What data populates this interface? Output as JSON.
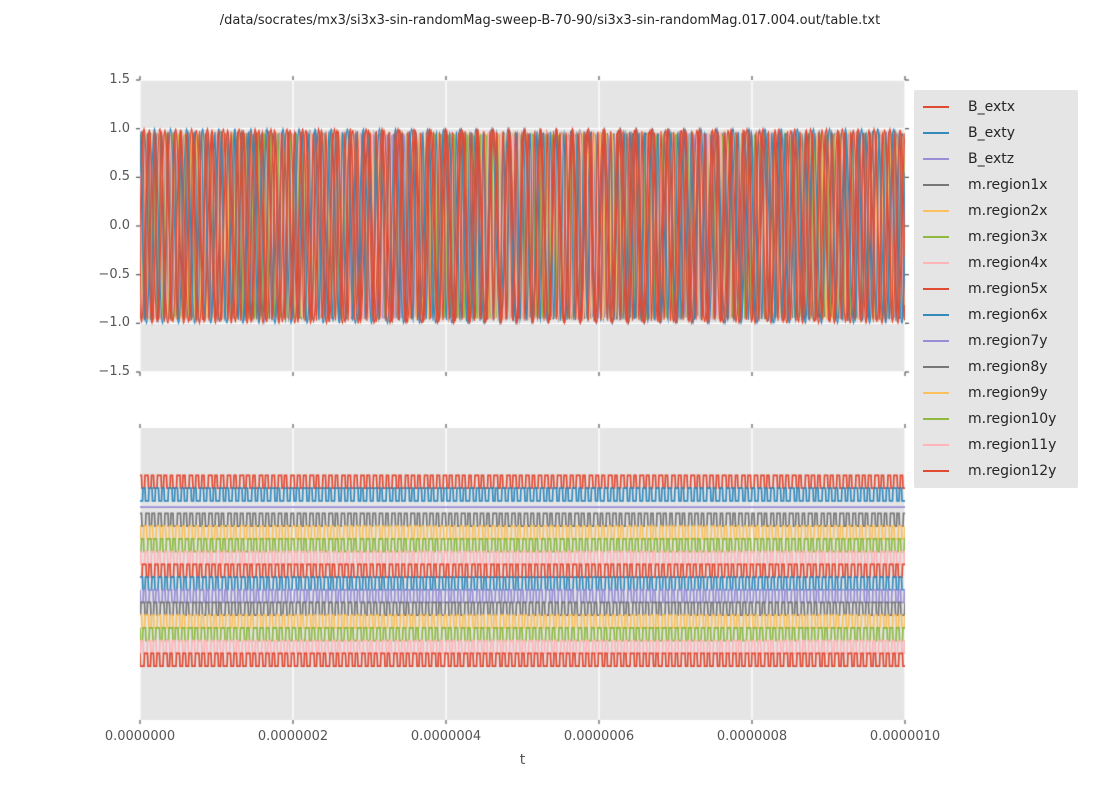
{
  "title": "/data/socrates/mx3/si3x3-sin-randomMag-sweep-B-70-90/si3x3-sin-randomMag.017.004.out/table.txt",
  "xlabel": "t",
  "x_ticks": [
    "0.0000000",
    "0.0000002",
    "0.0000004",
    "0.0000006",
    "0.0000008",
    "0.0000010"
  ],
  "colors": {
    "figure_bg": "#FFFFFF",
    "axes_bg": "#E5E5E5",
    "grid": "#FFFFFF",
    "tick_mark": "#555555",
    "tick_text": "#555555",
    "title_text": "#262626",
    "legend_text": "#262626",
    "palette": {
      "red": "#E24A33",
      "blue": "#348ABD",
      "purple": "#988ED5",
      "gray": "#777777",
      "orange": "#FBC15E",
      "green": "#8EBA42",
      "pink": "#FFB5B8"
    }
  },
  "legend": {
    "position": "right",
    "entries": [
      {
        "label": "B_extx",
        "color": "#E24A33"
      },
      {
        "label": "B_exty",
        "color": "#348ABD"
      },
      {
        "label": "B_extz",
        "color": "#988ED5"
      },
      {
        "label": "m.region1x",
        "color": "#777777"
      },
      {
        "label": "m.region2x",
        "color": "#FBC15E"
      },
      {
        "label": "m.region3x",
        "color": "#8EBA42"
      },
      {
        "label": "m.region4x",
        "color": "#FFB5B8"
      },
      {
        "label": "m.region5x",
        "color": "#E24A33"
      },
      {
        "label": "m.region6x",
        "color": "#348ABD"
      },
      {
        "label": "m.region7y",
        "color": "#988ED5"
      },
      {
        "label": "m.region8y",
        "color": "#777777"
      },
      {
        "label": "m.region9y",
        "color": "#FBC15E"
      },
      {
        "label": "m.region10y",
        "color": "#8EBA42"
      },
      {
        "label": "m.region11y",
        "color": "#FFB5B8"
      },
      {
        "label": "m.region12y",
        "color": "#E24A33"
      }
    ]
  },
  "chart_data": [
    {
      "id": "top",
      "type": "line",
      "title": "",
      "xlabel": "",
      "ylabel": "",
      "xlim": [
        0,
        1e-06
      ],
      "ylim": [
        -1.5,
        1.5
      ],
      "yticks": [
        "1.5",
        "1.0",
        "0.5",
        "0.0",
        "−0.5",
        "−1.0",
        "−1.5"
      ],
      "grid": "both",
      "ytick_marks_both_sides": true,
      "line_width": 1.1,
      "description": "All 15 signals overlaid: sinusoidal oscillations filling the band between -1 and +1 over t = 0 to 1e-6 s; red and blue (B_extx, B_exty) dominate, other colors visible as speckle near the envelope.",
      "series": [
        {
          "name": "B_extx",
          "color": "#E24A33",
          "wave": "sine",
          "amplitude": 1.0,
          "cycles": 48.2,
          "phase": 0.0,
          "z": 12
        },
        {
          "name": "B_exty",
          "color": "#348ABD",
          "wave": "sine",
          "amplitude": 1.0,
          "cycles": 47.6,
          "phase": 2.2,
          "z": 10
        },
        {
          "name": "B_extz",
          "color": "#988ED5",
          "wave": "flat",
          "value": 0.0,
          "z": 0
        },
        {
          "name": "m.region1x",
          "color": "#777777",
          "wave": "sine",
          "amplitude": 0.955,
          "cycles": 118.0,
          "phase": 0.8,
          "z": 1
        },
        {
          "name": "m.region2x",
          "color": "#FBC15E",
          "wave": "sine",
          "amplitude": 0.965,
          "cycles": 123.0,
          "phase": 1.9,
          "z": 2
        },
        {
          "name": "m.region3x",
          "color": "#8EBA42",
          "wave": "sine",
          "amplitude": 0.945,
          "cycles": 116.0,
          "phase": 3.1,
          "z": 3
        },
        {
          "name": "m.region4x",
          "color": "#FFB5B8",
          "wave": "sine",
          "amplitude": 0.96,
          "cycles": 126.0,
          "phase": 4.4,
          "z": 4
        },
        {
          "name": "m.region5x",
          "color": "#E24A33",
          "wave": "sine",
          "amplitude": 0.975,
          "cycles": 121.0,
          "phase": 5.3,
          "z": 13
        },
        {
          "name": "m.region6x",
          "color": "#348ABD",
          "wave": "sine",
          "amplitude": 0.975,
          "cycles": 114.0,
          "phase": 0.6,
          "z": 11
        },
        {
          "name": "m.region7y",
          "color": "#988ED5",
          "wave": "sine",
          "amplitude": 0.95,
          "cycles": 124.0,
          "phase": 2.7,
          "z": 5
        },
        {
          "name": "m.region8y",
          "color": "#777777",
          "wave": "sine",
          "amplitude": 0.96,
          "cycles": 119.0,
          "phase": 3.9,
          "z": 6
        },
        {
          "name": "m.region9y",
          "color": "#FBC15E",
          "wave": "sine",
          "amplitude": 0.955,
          "cycles": 127.0,
          "phase": 5.0,
          "z": 7
        },
        {
          "name": "m.region10y",
          "color": "#8EBA42",
          "wave": "sine",
          "amplitude": 0.95,
          "cycles": 117.0,
          "phase": 1.3,
          "z": 8
        },
        {
          "name": "m.region11y",
          "color": "#FFB5B8",
          "wave": "sine",
          "amplitude": 0.965,
          "cycles": 125.0,
          "phase": 2.0,
          "z": 9
        },
        {
          "name": "m.region12y",
          "color": "#E24A33",
          "wave": "sine",
          "amplitude": 0.985,
          "cycles": 48.9,
          "phase": 4.1,
          "z": 14
        }
      ]
    },
    {
      "id": "bottom",
      "type": "line",
      "title": "",
      "xlabel": "t",
      "ylabel": "",
      "xlim": [
        0,
        1e-06
      ],
      "yticks": [],
      "grid": "vertical",
      "line_width": 1.7,
      "offset_start_frac": 0.1839,
      "offset_step_frac": 0.04354,
      "square_amp_frac": 0.0218,
      "description": "Same 15 signals normalized and vertically offset in legend order (top to bottom); square-wave switching, B_extz is a flat line.",
      "series": [
        {
          "name": "B_extx",
          "color": "#E24A33",
          "wave": "square",
          "cycles": 120.5,
          "phase": 0.25
        },
        {
          "name": "B_exty",
          "color": "#348ABD",
          "wave": "square",
          "cycles": 119.3,
          "phase": 0.6
        },
        {
          "name": "B_extz",
          "color": "#988ED5",
          "wave": "flat"
        },
        {
          "name": "m.region1x",
          "color": "#777777",
          "wave": "square",
          "cycles": 121.2,
          "phase": 0.1
        },
        {
          "name": "m.region2x",
          "color": "#FBC15E",
          "wave": "square",
          "cycles": 118.6,
          "phase": 0.45
        },
        {
          "name": "m.region3x",
          "color": "#8EBA42",
          "wave": "square",
          "cycles": 122.3,
          "phase": 0.8
        },
        {
          "name": "m.region4x",
          "color": "#FFB5B8",
          "wave": "square",
          "cycles": 117.4,
          "phase": 0.3
        },
        {
          "name": "m.region5x",
          "color": "#E24A33",
          "wave": "square",
          "cycles": 120.8,
          "phase": 0.65
        },
        {
          "name": "m.region6x",
          "color": "#348ABD",
          "wave": "square",
          "cycles": 119.8,
          "phase": 0.15
        },
        {
          "name": "m.region7y",
          "color": "#988ED5",
          "wave": "square",
          "cycles": 121.6,
          "phase": 0.5
        },
        {
          "name": "m.region8y",
          "color": "#777777",
          "wave": "square",
          "cycles": 118.2,
          "phase": 0.85
        },
        {
          "name": "m.region9y",
          "color": "#FBC15E",
          "wave": "square",
          "cycles": 122.8,
          "phase": 0.2
        },
        {
          "name": "m.region10y",
          "color": "#8EBA42",
          "wave": "square",
          "cycles": 117.8,
          "phase": 0.55
        },
        {
          "name": "m.region11y",
          "color": "#FFB5B8",
          "wave": "square",
          "cycles": 120.2,
          "phase": 0.9
        },
        {
          "name": "m.region12y",
          "color": "#E24A33",
          "wave": "square",
          "cycles": 119.6,
          "phase": 0.35
        }
      ]
    }
  ]
}
